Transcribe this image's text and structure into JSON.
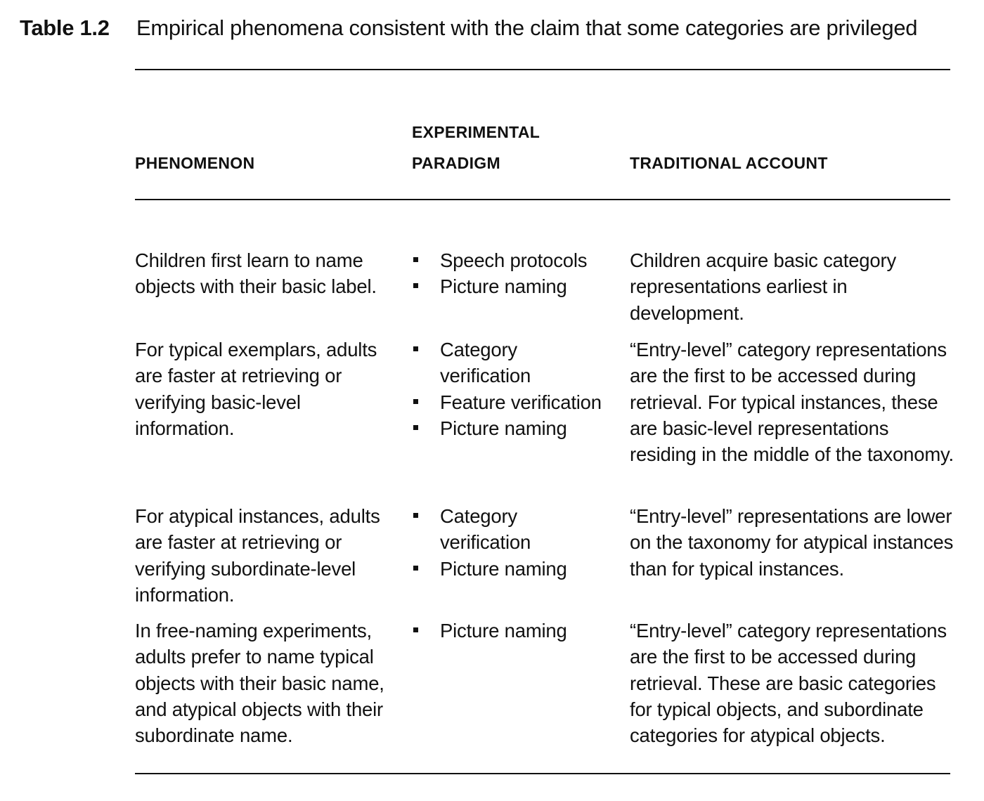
{
  "caption": {
    "label": "Table 1.2",
    "title": "Empirical phenomena consistent with the claim that some categories are privileged"
  },
  "headers": {
    "phenomenon": "PHENOMENON",
    "paradigm_line1": "EXPERIMENTAL",
    "paradigm_line2": "PARADIGM",
    "account": "TRADITIONAL ACCOUNT"
  },
  "rows": [
    {
      "phenomenon": "Children first learn to name objects with their basic label.",
      "paradigms": [
        "Speech protocols",
        "Picture naming"
      ],
      "account": "Children acquire basic category representations earliest in development."
    },
    {
      "phenomenon": "For typical exemplars, adults are faster at retrieving or verifying basic-level information.",
      "paradigms": [
        "Category verification",
        "Feature verification",
        "Picture naming"
      ],
      "account": "“Entry-level” category representations are the first to be accessed during retrieval. For typical instances, these are basic-level representations residing in the middle of the taxonomy."
    },
    {
      "phenomenon": "For atypical instances, adults are faster at retrieving or verifying subordinate-level information.",
      "paradigms": [
        "Category verification",
        "Picture naming"
      ],
      "account": "“Entry-level” representations are lower on the taxonomy for atypical instances than for typical instances."
    },
    {
      "phenomenon": "In free-naming experiments, adults prefer to name typical objects with their basic name, and atypical objects with their subordinate name.",
      "paradigms": [
        "Picture naming"
      ],
      "account": "“Entry-level” category representations are the first to be accessed during retrieval. These are basic categories for typical objects, and subordinate categories for atypical objects."
    }
  ]
}
